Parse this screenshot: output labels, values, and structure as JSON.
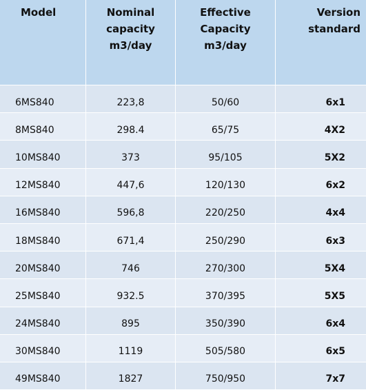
{
  "table": {
    "header": [
      [
        "Model"
      ],
      [
        "Nominal",
        "capacity",
        "m3/day"
      ],
      [
        "Effective",
        "Capacity",
        "m3/day"
      ],
      [
        "Version",
        "standard"
      ]
    ],
    "rows": [
      [
        "6MS840",
        "223,8",
        "50/60",
        "6x1"
      ],
      [
        "8MS840",
        "298.4",
        "65/75",
        "4X2"
      ],
      [
        "10MS840",
        "373",
        "95/105",
        "5X2"
      ],
      [
        "12MS840",
        "447,6",
        "120/130",
        "6x2"
      ],
      [
        "16MS840",
        "596,8",
        "220/250",
        "4x4"
      ],
      [
        "18MS840",
        "671,4",
        "250/290",
        "6x3"
      ],
      [
        "20MS840",
        "746",
        "270/300",
        "5X4"
      ],
      [
        "25MS840",
        "932.5",
        "370/395",
        "5X5"
      ],
      [
        "24MS840",
        "895",
        "350/390",
        "6x4"
      ],
      [
        "30MS840",
        "1119",
        "505/580",
        "6x5"
      ],
      [
        "49MS840",
        "1827",
        "750/950",
        "7x7"
      ]
    ]
  }
}
